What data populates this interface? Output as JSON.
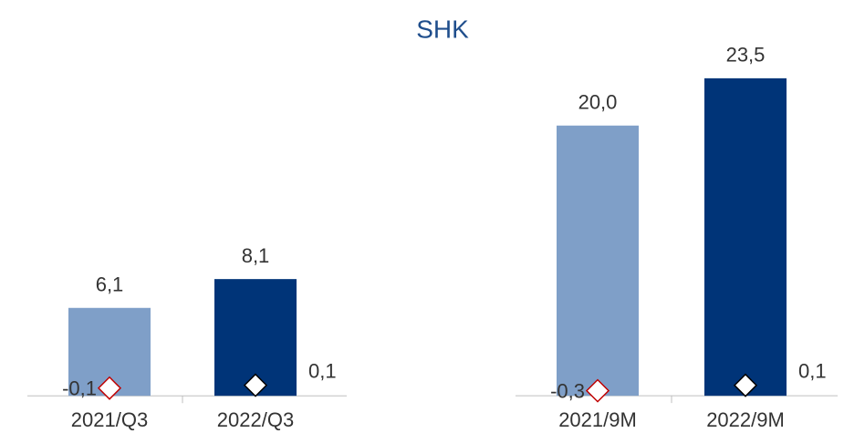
{
  "title": "SHK",
  "chart_data": [
    {
      "type": "bar",
      "categories": [
        "2021/Q3",
        "2022/Q3"
      ],
      "ylim": [
        -1,
        25
      ],
      "series": [
        {
          "type": "bar",
          "values": [
            6.1,
            8.1
          ],
          "value_labels": [
            "6,1",
            "8,1"
          ],
          "colors": [
            "#7f9fc8",
            "#003478"
          ]
        },
        {
          "type": "diamond",
          "values": [
            -0.1,
            0.1
          ],
          "value_labels": [
            "-0,1",
            "0,1"
          ],
          "colors": [
            "#c00000",
            "#000000"
          ]
        }
      ]
    },
    {
      "type": "bar",
      "categories": [
        "2021/9M",
        "2022/9M"
      ],
      "ylim": [
        -1,
        27
      ],
      "series": [
        {
          "type": "bar",
          "values": [
            20.0,
            23.5
          ],
          "value_labels": [
            "20,0",
            "23,5"
          ],
          "colors": [
            "#7f9fc8",
            "#003478"
          ]
        },
        {
          "type": "diamond",
          "values": [
            -0.3,
            0.1
          ],
          "value_labels": [
            "-0,3",
            "0,1"
          ],
          "colors": [
            "#c00000",
            "#000000"
          ]
        }
      ]
    }
  ]
}
